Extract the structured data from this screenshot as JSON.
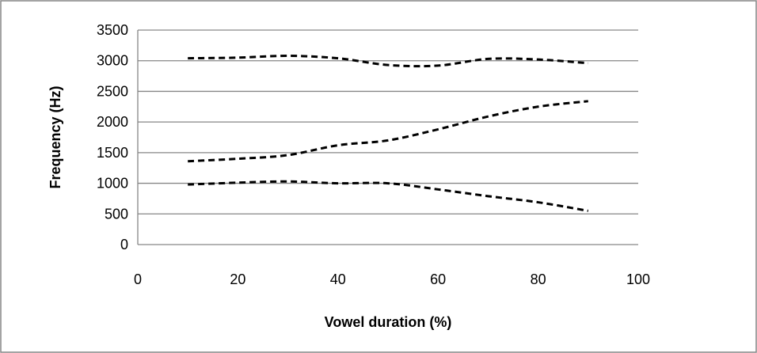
{
  "chart_data": {
    "type": "line",
    "title": "",
    "xlabel": "Vowel duration (%)",
    "ylabel": "Frequency (Hz)",
    "xlim": [
      0,
      100
    ],
    "ylim": [
      0,
      3500
    ],
    "x_ticks": [
      0,
      20,
      40,
      60,
      80,
      100
    ],
    "y_ticks": [
      0,
      500,
      1000,
      1500,
      2000,
      2500,
      3000,
      3500
    ],
    "grid": "horizontal",
    "legend": "none",
    "line_style": "dashed",
    "line_color": "#000000",
    "grid_color": "#868686",
    "series": [
      {
        "x": [
          10,
          20,
          30,
          40,
          50,
          60,
          70,
          80,
          90
        ],
        "values": [
          3040,
          3050,
          3080,
          3040,
          2930,
          2920,
          3030,
          3020,
          2960
        ]
      },
      {
        "x": [
          10,
          20,
          30,
          40,
          50,
          60,
          70,
          80,
          90
        ],
        "values": [
          1360,
          1400,
          1460,
          1620,
          1700,
          1880,
          2090,
          2250,
          2340
        ]
      },
      {
        "x": [
          10,
          20,
          30,
          40,
          50,
          60,
          70,
          80,
          90
        ],
        "values": [
          980,
          1010,
          1030,
          1000,
          1000,
          900,
          790,
          690,
          550
        ]
      }
    ]
  }
}
